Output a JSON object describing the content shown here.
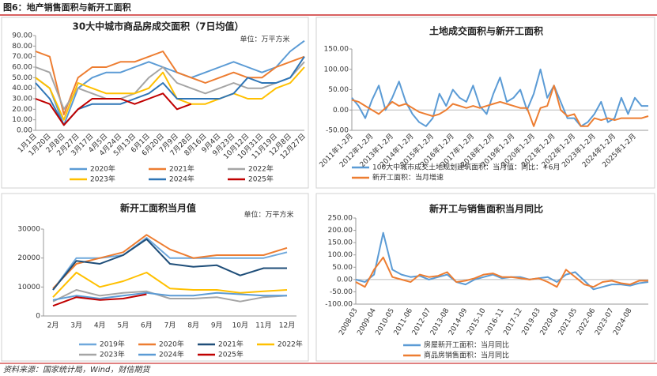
{
  "header": {
    "title": "图6：地产销售面积与新开工面积"
  },
  "source": "资料来源：国家统计局，Wind，财信期货",
  "chart_data": [
    {
      "type": "line",
      "title": "30大中城市商品房成交面积（7日均值）",
      "unit": "单位：万平方米",
      "categories": [
        "1月1日",
        "1月20日",
        "2月8日",
        "2月27日",
        "3月17日",
        "4月5日",
        "4月24日",
        "5月13日",
        "6月1日",
        "6月20日",
        "7月9日",
        "7月28日",
        "8月16日",
        "9月4日",
        "9月23日",
        "10月12日",
        "10月31日",
        "11月19日",
        "12月8日",
        "12月27日"
      ],
      "ylim": [
        0,
        90
      ],
      "yticks": [
        {
          "value": 0,
          "label": "0.00"
        },
        {
          "value": 10,
          "label": "10.00"
        },
        {
          "value": 20,
          "label": "20.00"
        },
        {
          "value": 30,
          "label": "30.00"
        },
        {
          "value": 40,
          "label": "40.00"
        },
        {
          "value": 50,
          "label": "50.00"
        },
        {
          "value": 60,
          "label": "60.00"
        },
        {
          "value": 70,
          "label": "70.00"
        },
        {
          "value": 80,
          "label": "80.00"
        },
        {
          "value": 90,
          "label": "90.00"
        }
      ],
      "series": [
        {
          "name": "2020年",
          "color": "#5b9bd5",
          "values": [
            50,
            40,
            5,
            40,
            50,
            55,
            55,
            60,
            65,
            60,
            55,
            50,
            55,
            60,
            65,
            60,
            55,
            60,
            75,
            85
          ]
        },
        {
          "name": "2021年",
          "color": "#ed7d31",
          "values": [
            75,
            70,
            15,
            50,
            60,
            60,
            65,
            65,
            70,
            75,
            55,
            50,
            45,
            50,
            55,
            50,
            50,
            60,
            65,
            70
          ]
        },
        {
          "name": "2022年",
          "color": "#a5a5a5",
          "values": [
            60,
            55,
            20,
            40,
            35,
            30,
            30,
            35,
            50,
            60,
            45,
            40,
            35,
            40,
            45,
            40,
            40,
            45,
            50,
            65
          ]
        },
        {
          "name": "2023年",
          "color": "#ffc000",
          "values": [
            50,
            40,
            10,
            45,
            40,
            35,
            35,
            35,
            40,
            55,
            30,
            25,
            25,
            30,
            35,
            30,
            30,
            40,
            45,
            60
          ]
        },
        {
          "name": "2024年",
          "color": "#2e75b6",
          "values": [
            45,
            30,
            5,
            20,
            25,
            25,
            25,
            30,
            35,
            45,
            30,
            30,
            30,
            30,
            35,
            50,
            45,
            45,
            50,
            70
          ]
        },
        {
          "name": "2025年",
          "color": "#c00000",
          "values": [
            30,
            25,
            5,
            20,
            30,
            30,
            30,
            25,
            30,
            35,
            20,
            25,
            null,
            null,
            null,
            null,
            null,
            null,
            null,
            null
          ]
        }
      ]
    },
    {
      "type": "line",
      "title": "土地成交面积与新开工面积",
      "categories": [
        "2011年1-2月",
        null,
        null,
        "2012年1-2月",
        null,
        null,
        "2013年1-2月",
        null,
        null,
        "2014年1-2月",
        null,
        null,
        "2015年1-2月",
        null,
        null,
        "2016年1-2月",
        null,
        null,
        "2017年1-2月",
        null,
        null,
        "2018年1-2月",
        null,
        null,
        "2019年1-2月",
        null,
        null,
        "2020年1-2月",
        null,
        null,
        "2021年1-2月",
        null,
        null,
        "2022年1-2月",
        null,
        null,
        "2023年1-2月",
        null,
        null,
        "2024年1-2月",
        null,
        null,
        "2025年1-2月",
        null,
        null
      ],
      "ylim": [
        -50,
        150
      ],
      "yticks": [
        {
          "value": -50,
          "label": "-50.00"
        },
        {
          "value": 0,
          "label": "0.00"
        },
        {
          "value": 50,
          "label": "50.00"
        },
        {
          "value": 100,
          "label": "100.00"
        },
        {
          "value": 150,
          "label": "150.00"
        }
      ],
      "series": [
        {
          "name": "100大中城市成交土地规划建筑面积：当月值：同比：+6月",
          "color": "#5b9bd5",
          "values": [
            30,
            10,
            -20,
            25,
            60,
            0,
            30,
            70,
            20,
            -10,
            -30,
            -40,
            -20,
            40,
            10,
            50,
            30,
            20,
            60,
            10,
            -10,
            40,
            80,
            20,
            30,
            50,
            0,
            40,
            100,
            30,
            60,
            20,
            -20,
            -20,
            -40,
            -30,
            -10,
            20,
            -30,
            -20,
            30,
            -10,
            30,
            10,
            10
          ]
        },
        {
          "name": "新开工面积：当月增速",
          "color": "#ed7d31",
          "values": [
            25,
            20,
            10,
            0,
            -10,
            5,
            20,
            10,
            15,
            5,
            -5,
            -10,
            -15,
            -10,
            0,
            15,
            10,
            5,
            10,
            5,
            10,
            15,
            20,
            15,
            10,
            5,
            5,
            -40,
            5,
            10,
            60,
            0,
            -15,
            -10,
            -40,
            -40,
            -20,
            -25,
            -20,
            -25,
            -20,
            -20,
            -20,
            -20,
            -15
          ]
        }
      ]
    },
    {
      "type": "line",
      "title": "新开工面积当月值",
      "unit": "单位：万平方米",
      "categories": [
        "2月",
        "3月",
        "4月",
        "5月",
        "6月",
        "7月",
        "8月",
        "9月",
        "10月",
        "11月",
        "12月"
      ],
      "ylim": [
        0,
        30000
      ],
      "yticks": [
        0,
        10000,
        20000,
        30000
      ],
      "series": [
        {
          "name": "2019年",
          "color": "#6fa8dc",
          "values": [
            9000,
            20000,
            20000,
            21000,
            27000,
            20000,
            20000,
            20000,
            20000,
            20000,
            22000
          ]
        },
        {
          "name": "2020年",
          "color": "#ed7d31",
          "values": [
            9500,
            18000,
            20000,
            22000,
            28000,
            23000,
            20000,
            21000,
            21000,
            21000,
            23500
          ]
        },
        {
          "name": "2021年",
          "color": "#1f4e79",
          "values": [
            9000,
            19000,
            18000,
            21000,
            26500,
            18000,
            17000,
            17500,
            14000,
            16500,
            16500
          ]
        },
        {
          "name": "2022年",
          "color": "#ffc000",
          "values": [
            6500,
            15000,
            10000,
            12000,
            15000,
            9500,
            9000,
            9000,
            8000,
            8500,
            9000
          ]
        },
        {
          "name": "2023年",
          "color": "#a5a5a5",
          "values": [
            5000,
            9000,
            7000,
            8000,
            8500,
            6000,
            6000,
            6500,
            5000,
            6500,
            7000
          ]
        },
        {
          "name": "2024年",
          "color": "#5b9bd5",
          "values": [
            5500,
            7000,
            6000,
            7000,
            8000,
            7000,
            7000,
            8000,
            7500,
            7000,
            7000
          ]
        },
        {
          "name": "2025年",
          "color": "#c00000",
          "values": [
            3500,
            6500,
            5500,
            6000,
            7500,
            null,
            null,
            null,
            null,
            null,
            null
          ]
        }
      ]
    },
    {
      "type": "line",
      "title": "新开工与销售面积当月同比",
      "categories": [
        "2008-03",
        null,
        "2009-04",
        null,
        "2010-05",
        null,
        "2011-06",
        null,
        "2012-07",
        null,
        "2013-08",
        null,
        "2014-09",
        null,
        "2015-10",
        null,
        "2016-11",
        null,
        "2017-12",
        null,
        "2019-03",
        null,
        "2020-04",
        null,
        "2021-05",
        null,
        "2022-06",
        null,
        "2023-07",
        null,
        "2024-08",
        null,
        null
      ],
      "ylim": [
        -100,
        250
      ],
      "yticks": [
        {
          "value": -100,
          "label": "-100.00"
        },
        {
          "value": -50,
          "label": "-50.00"
        },
        {
          "value": 0,
          "label": "0.00"
        },
        {
          "value": 50,
          "label": "50.00"
        },
        {
          "value": 100,
          "label": "100.00"
        },
        {
          "value": 150,
          "label": "150.00"
        },
        {
          "value": 200,
          "label": "200.00"
        },
        {
          "value": 250,
          "label": "250.00"
        }
      ],
      "series": [
        {
          "name": "房屋新开工面积：当月同比",
          "color": "#5b9bd5",
          "values": [
            0,
            -10,
            20,
            190,
            40,
            20,
            10,
            15,
            0,
            10,
            20,
            -10,
            -20,
            0,
            10,
            20,
            5,
            10,
            10,
            0,
            5,
            10,
            -10,
            20,
            30,
            -5,
            -40,
            -30,
            -20,
            -20,
            -25,
            -15,
            -10
          ]
        },
        {
          "name": "商品房销售面积：当月同比",
          "color": "#ed7d31",
          "values": [
            -10,
            -30,
            40,
            90,
            10,
            0,
            -10,
            20,
            10,
            15,
            30,
            -10,
            -5,
            5,
            20,
            25,
            10,
            10,
            5,
            0,
            5,
            -10,
            -30,
            40,
            10,
            -20,
            -30,
            -10,
            -5,
            -15,
            -20,
            -5,
            -5
          ]
        }
      ]
    }
  ]
}
